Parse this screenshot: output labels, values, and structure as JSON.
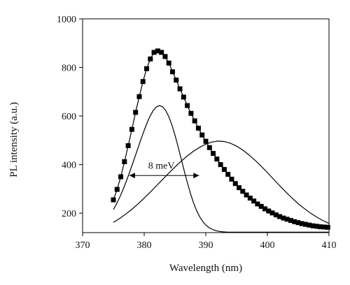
{
  "chart_data": {
    "type": "line",
    "title": "",
    "xlabel": "Wavelength (nm)",
    "ylabel": "PL intensity (a.u.)",
    "xlim": [
      370,
      410
    ],
    "ylim": [
      120,
      1000
    ],
    "x_ticks": [
      370,
      380,
      390,
      400,
      410
    ],
    "y_ticks": [
      200,
      400,
      600,
      800,
      1000
    ],
    "grid": false,
    "legend": "none",
    "series": [
      {
        "style": "line-with-square-markers",
        "color": "#000000",
        "x": [
          375.0,
          375.6,
          376.2,
          376.8,
          377.4,
          378.0,
          378.6,
          379.2,
          379.8,
          380.4,
          381.0,
          381.6,
          382.2,
          382.8,
          383.4,
          384.0,
          384.6,
          385.2,
          385.8,
          386.4,
          387.0,
          387.6,
          388.2,
          388.8,
          389.4,
          390.0,
          390.6,
          391.2,
          391.8,
          392.4,
          393.0,
          393.6,
          394.2,
          394.8,
          395.4,
          396.0,
          396.6,
          397.2,
          397.8,
          398.4,
          399.0,
          399.6,
          400.2,
          400.8,
          401.4,
          402.0,
          402.6,
          403.2,
          403.8,
          404.4,
          405.0,
          405.6,
          406.2,
          406.8,
          407.4,
          408.0,
          408.6,
          409.2,
          409.8
        ],
        "y": [
          255,
          298,
          350,
          412,
          478,
          545,
          615,
          680,
          742,
          795,
          835,
          862,
          868,
          862,
          845,
          818,
          782,
          748,
          712,
          678,
          643,
          611,
          580,
          550,
          522,
          496,
          470,
          446,
          423,
          400,
          380,
          360,
          340,
          322,
          305,
          290,
          275,
          262,
          250,
          238,
          228,
          218,
          209,
          201,
          193,
          186,
          180,
          175,
          170,
          165,
          161,
          157,
          154,
          151,
          148,
          146,
          144,
          143,
          142
        ]
      },
      {
        "style": "line",
        "color": "#000000",
        "x": [
          375.0,
          375.5,
          376.0,
          376.5,
          377.0,
          377.5,
          378.0,
          378.5,
          379.0,
          379.5,
          380.0,
          380.5,
          381.0,
          381.5,
          382.0,
          382.5,
          383.0,
          383.5,
          384.0,
          384.5,
          385.0,
          385.5,
          386.0,
          386.5,
          387.0,
          387.5,
          388.0,
          388.5,
          389.0,
          389.5,
          390.0,
          390.5,
          391.0,
          391.5,
          392.0,
          392.5,
          393.0,
          393.5,
          394.0,
          394.5,
          395.0,
          395.5,
          396.0,
          397.0,
          398.0,
          399.0,
          400.0,
          402.0,
          404.0,
          406.0,
          408.0,
          410.0
        ],
        "y": [
          215,
          238,
          264,
          293,
          325,
          359,
          395,
          432,
          469,
          506,
          541,
          574,
          602,
          624,
          638,
          643,
          638,
          622,
          597,
          563,
          521,
          474,
          424,
          374,
          326,
          282,
          243,
          211,
          186,
          166,
          151,
          141,
          134,
          129,
          126,
          124,
          123,
          122,
          122,
          122,
          122,
          122,
          122,
          122,
          122,
          122,
          122,
          122,
          122,
          122,
          122,
          122
        ]
      },
      {
        "style": "line",
        "color": "#000000",
        "x": [
          375,
          376,
          377,
          378,
          379,
          380,
          381,
          382,
          383,
          384,
          385,
          386,
          387,
          388,
          389,
          390,
          391,
          392,
          393,
          394,
          395,
          396,
          397,
          398,
          399,
          400,
          401,
          402,
          403,
          404,
          405,
          406,
          407,
          408,
          409,
          410
        ],
        "y": [
          162,
          178,
          196,
          216,
          238,
          262,
          287,
          313,
          339,
          365,
          390,
          414,
          436,
          455,
          471,
          484,
          493,
          497,
          495,
          488,
          476,
          460,
          440,
          418,
          393,
          367,
          340,
          313,
          287,
          262,
          239,
          219,
          200,
          184,
          170,
          158
        ]
      }
    ],
    "annotation": {
      "text": "8 meV",
      "x_start": 377.6,
      "x_end": 388.9,
      "y": 355
    }
  }
}
